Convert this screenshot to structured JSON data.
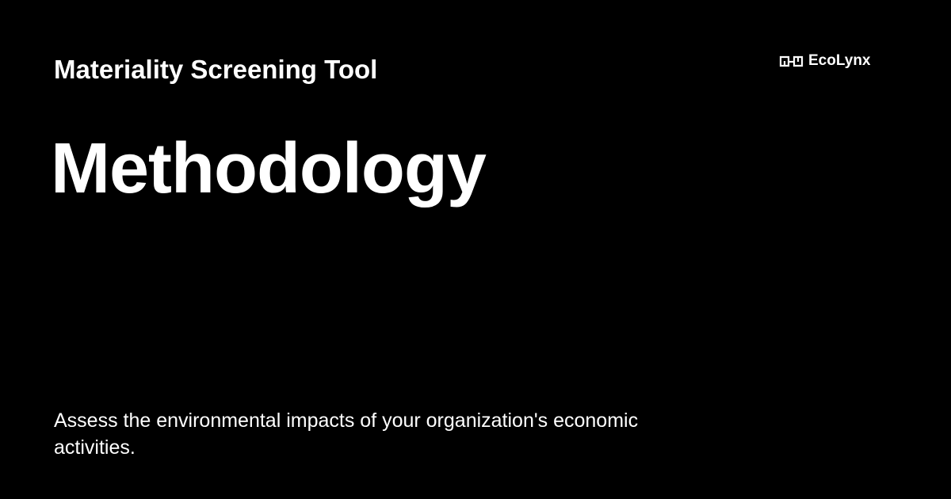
{
  "card": {
    "supertitle": "Materiality Screening Tool",
    "title": "Methodology",
    "description": "Assess the environmental impacts of your organization's economic activities."
  },
  "brand": {
    "name": "EcoLynx",
    "icon": "ecolynx-logo-icon"
  },
  "colors": {
    "background": "#000000",
    "text": "#ffffff"
  }
}
